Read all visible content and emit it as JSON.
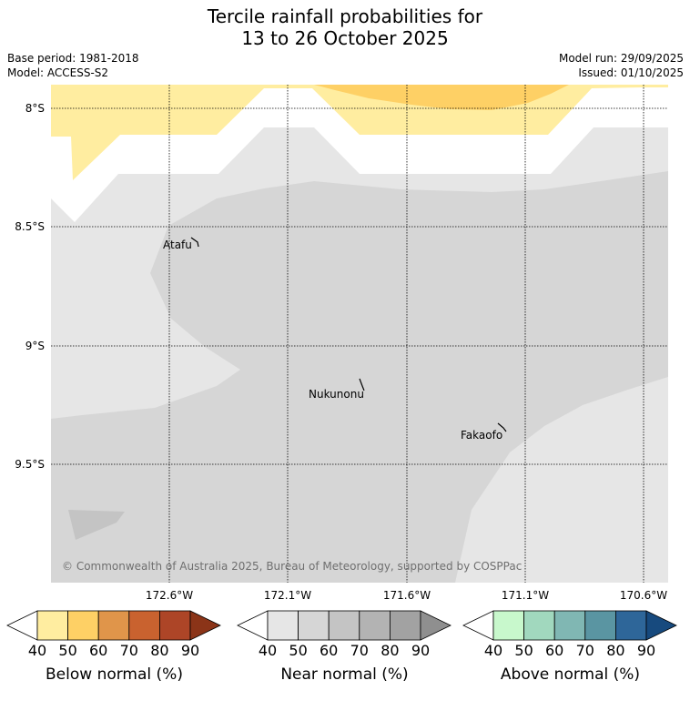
{
  "title": {
    "line1": "Tercile rainfall probabilities for",
    "line2": "13 to 26 October 2025"
  },
  "meta": {
    "base_period": "Base period: 1981-2018",
    "model": "Model: ACCESS-S2",
    "model_run": "Model run: 29/09/2025",
    "issued": "Issued: 01/10/2025"
  },
  "map": {
    "lat_labels": [
      "8°S",
      "8.5°S",
      "9°S",
      "9.5°S"
    ],
    "lon_labels": [
      "172.6°W",
      "172.1°W",
      "171.6°W",
      "171.1°W",
      "170.6°W"
    ],
    "places": [
      "Atafu",
      "Nukunonu",
      "Fakaofo"
    ],
    "copyright": "© Commonwealth of Australia 2025, Bureau of Meteorology, supported by COSPPac"
  },
  "colorbars": [
    {
      "label": "Below normal (%)",
      "ticks": [
        "40",
        "50",
        "60",
        "70",
        "80",
        "90"
      ],
      "colors": [
        "#ffeda0",
        "#fed065",
        "#e0954a",
        "#c9622f",
        "#ad4527",
        "#8b3418"
      ]
    },
    {
      "label": "Near normal (%)",
      "ticks": [
        "40",
        "50",
        "60",
        "70",
        "80",
        "90"
      ],
      "colors": [
        "#e6e6e6",
        "#d6d6d6",
        "#c4c4c4",
        "#b3b3b3",
        "#a2a2a2",
        "#8f8f8f"
      ]
    },
    {
      "label": "Above normal (%)",
      "ticks": [
        "40",
        "50",
        "60",
        "70",
        "80",
        "90"
      ],
      "colors": [
        "#c8f8cc",
        "#a1d8be",
        "#80b7b3",
        "#5a95a2",
        "#2e6699",
        "#174a7e"
      ]
    }
  ]
}
